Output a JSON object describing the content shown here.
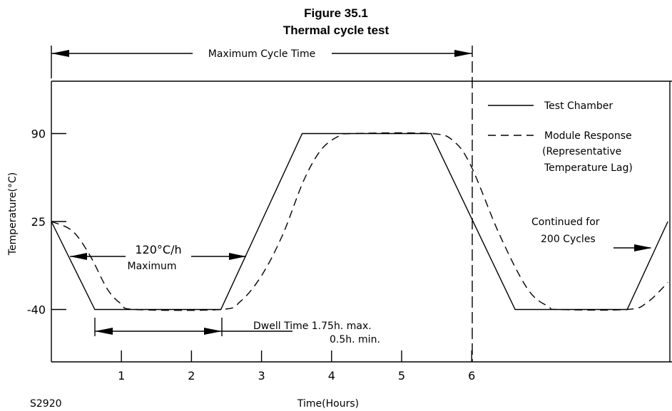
{
  "figure": {
    "number": "Figure 35.1",
    "title": "Thermal cycle test",
    "code": "S2920"
  },
  "chart_data": {
    "type": "line",
    "xlabel": "Time(Hours)",
    "ylabel": "Temperature(°C)",
    "x_ticks": [
      1,
      2,
      3,
      4,
      5,
      6
    ],
    "y_ticks": [
      90,
      25,
      -40
    ],
    "xlim": [
      0,
      8.8
    ],
    "ylim": [
      -78,
      110
    ],
    "series": [
      {
        "name": "Test Chamber",
        "style": "solid",
        "points": [
          [
            0,
            25
          ],
          [
            0.62,
            -40
          ],
          [
            2.42,
            -40
          ],
          [
            3.58,
            90
          ],
          [
            5.42,
            90
          ],
          [
            6.62,
            -40
          ],
          [
            8.22,
            -40
          ],
          [
            8.8,
            25
          ]
        ]
      },
      {
        "name": "Module Response",
        "style": "dashed",
        "points": [
          [
            0,
            25
          ],
          [
            0.3,
            18
          ],
          [
            0.55,
            0
          ],
          [
            0.8,
            -25
          ],
          [
            1.0,
            -36
          ],
          [
            1.2,
            -40
          ],
          [
            2.42,
            -40
          ],
          [
            2.7,
            -34
          ],
          [
            3.0,
            -15
          ],
          [
            3.3,
            15
          ],
          [
            3.6,
            55
          ],
          [
            3.85,
            78
          ],
          [
            4.1,
            88
          ],
          [
            4.3,
            90
          ],
          [
            5.42,
            90
          ],
          [
            5.75,
            84
          ],
          [
            6.0,
            65
          ],
          [
            6.4,
            15
          ],
          [
            6.8,
            -25
          ],
          [
            7.1,
            -38
          ],
          [
            7.25,
            -40
          ],
          [
            8.22,
            -40
          ],
          [
            8.5,
            -35
          ],
          [
            8.8,
            -20
          ]
        ]
      }
    ],
    "legend": {
      "position": "top-right",
      "chamber_label": "Test Chamber",
      "module_label": "Module Response",
      "module_note_1": "(Representative",
      "module_note_2": "Temperature Lag)"
    },
    "annotations": {
      "max_cycle_time": "Maximum Cycle Time",
      "ramp_rate": "120°C/h",
      "ramp_rate_note": "Maximum",
      "dwell_1": "Dwell Time 1.75h. max.",
      "dwell_2": "0.5h. min.",
      "continued_1": "Continued for",
      "continued_2": "200 Cycles"
    }
  }
}
